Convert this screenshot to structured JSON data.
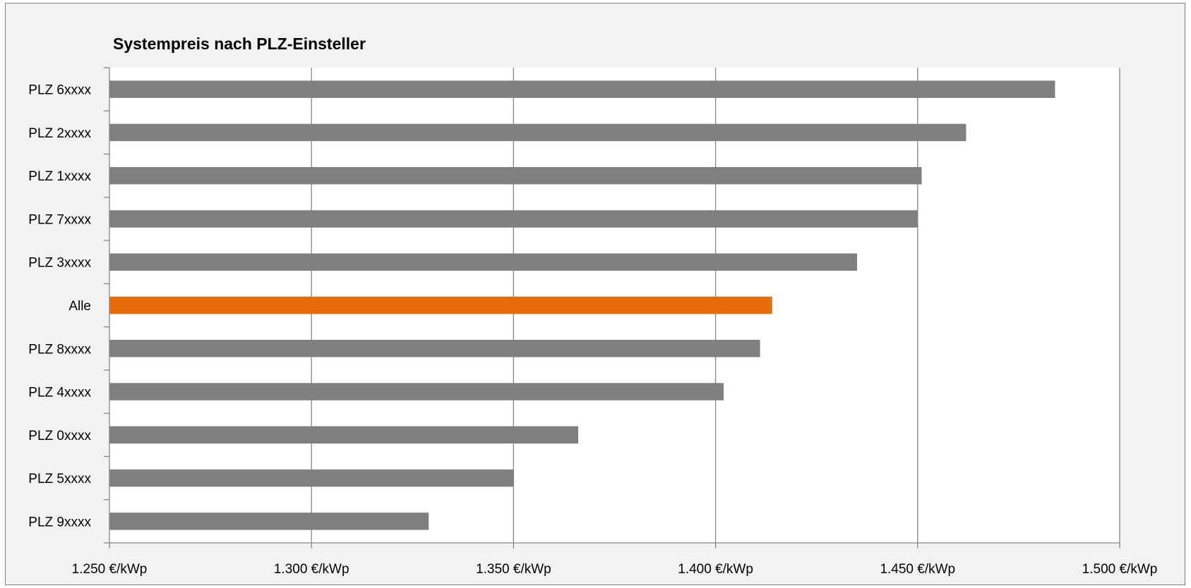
{
  "chart_data": {
    "type": "bar",
    "orientation": "horizontal",
    "title": "Systempreis nach PLZ-Einsteller",
    "categories": [
      "PLZ 6xxxx",
      "PLZ 2xxxx",
      "PLZ 1xxxx",
      "PLZ 7xxxx",
      "PLZ 3xxxx",
      "Alle",
      "PLZ 8xxxx",
      "PLZ 4xxxx",
      "PLZ 0xxxx",
      "PLZ 5xxxx",
      "PLZ 9xxxx"
    ],
    "values": [
      1484,
      1462,
      1451,
      1450,
      1435,
      1414,
      1411,
      1402,
      1366,
      1350,
      1329
    ],
    "unit": "€/kWp",
    "xlim": [
      1250,
      1500
    ],
    "x_ticks": [
      1250,
      1300,
      1350,
      1400,
      1450,
      1500
    ],
    "x_tick_labels": [
      "1.250 €/kWp",
      "1.300 €/kWp",
      "1.350 €/kWp",
      "1.400 €/kWp",
      "1.450 €/kWp",
      "1.500 €/kWp"
    ],
    "grid": "vertical",
    "legend": "none",
    "colors": {
      "default_bar": "#7f7f7f",
      "highlight_bar": "#e46c0a",
      "highlight_category": "Alle",
      "gridline": "#868686",
      "plot_background": "#ffffff",
      "frame_background": "#f2f2f2"
    }
  }
}
